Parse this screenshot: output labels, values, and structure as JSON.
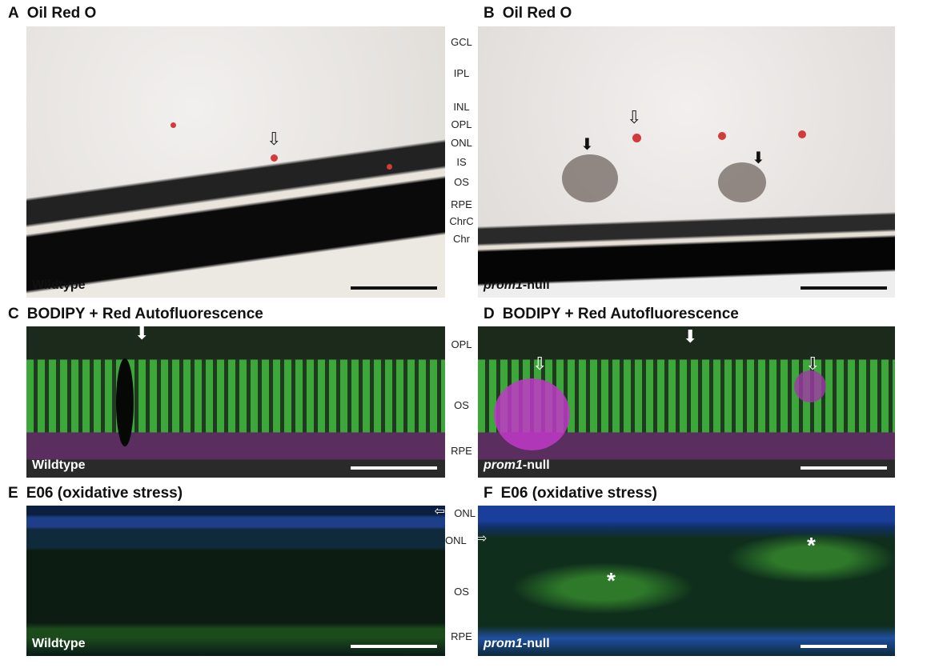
{
  "panels": [
    {
      "letter": "A",
      "title": "Oil Red O",
      "genotype_plain": "Wildtype"
    },
    {
      "letter": "B",
      "title": "Oil Red O",
      "genotype_italic": "prom1",
      "genotype_suffix": "-null"
    },
    {
      "letter": "C",
      "title": "BODIPY + Red Autofluorescence",
      "genotype_plain": "Wildtype"
    },
    {
      "letter": "D",
      "title": "BODIPY + Red Autofluorescence",
      "genotype_italic": "prom1",
      "genotype_suffix": "-null"
    },
    {
      "letter": "E",
      "title": "E06 (oxidative stress)",
      "genotype_plain": "Wildtype"
    },
    {
      "letter": "F",
      "title": "E06 (oxidative stress)",
      "genotype_italic": "prom1",
      "genotype_suffix": "-null"
    }
  ],
  "layers_top": [
    "GCL",
    "IPL",
    "INL",
    "OPL",
    "ONL",
    "IS",
    "OS",
    "RPE",
    "ChrC",
    "Chr"
  ],
  "layers_mid": [
    "OPL",
    "OS",
    "RPE"
  ],
  "layers_bottom": [
    "ONL",
    "ONL",
    "OS",
    "RPE"
  ],
  "arrows": {
    "open": "⇩",
    "filled": "⬇",
    "left": "⇦",
    "right": "⇨"
  },
  "asterisk": "*",
  "colors": {
    "lipid": "#d43a3a",
    "bodipy": "#3dd13a",
    "autofluorescence": "#d23ad6",
    "dapi": "#2a55d0",
    "e06": "#3aa83a"
  }
}
